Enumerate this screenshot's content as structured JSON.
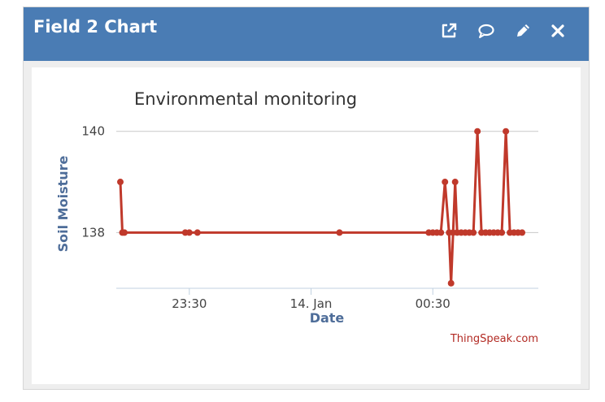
{
  "widget": {
    "title": "Field 2 Chart",
    "header_color": "#4a7cb4",
    "actions": [
      {
        "name": "open-external-icon"
      },
      {
        "name": "comment-icon"
      },
      {
        "name": "edit-pencil-icon"
      },
      {
        "name": "close-icon"
      }
    ]
  },
  "credit": "ThingSpeak.com",
  "chart_data": {
    "type": "line",
    "title": "Environmental monitoring",
    "xlabel": "Date",
    "ylabel": "Soil Moisture",
    "series_color": "#c0392b",
    "grid": true,
    "legend": "none",
    "x_ticks": [
      {
        "label": "23:30",
        "at": "23:30"
      },
      {
        "label": "14. Jan",
        "at": "00:00"
      },
      {
        "label": "00:30",
        "at": "00:30"
      }
    ],
    "y_ticks": [
      138,
      140
    ],
    "ylim": [
      136.9,
      140.3
    ],
    "xlim": [
      "23:12",
      "00:56"
    ],
    "series": [
      {
        "points": [
          [
            "23:13",
            139
          ],
          [
            "23:13.5",
            138
          ],
          [
            "23:14",
            138
          ],
          [
            "23:29",
            138
          ],
          [
            "23:30",
            138
          ],
          [
            "23:32",
            138
          ],
          [
            "00:07",
            138
          ],
          [
            "00:29",
            138
          ],
          [
            "00:30",
            138
          ],
          [
            "00:31",
            138
          ],
          [
            "00:32",
            138
          ],
          [
            "00:33",
            139
          ],
          [
            "00:34",
            138
          ],
          [
            "00:34.5",
            137
          ],
          [
            "00:35",
            138
          ],
          [
            "00:35.5",
            139
          ],
          [
            "00:36",
            138
          ],
          [
            "00:37",
            138
          ],
          [
            "00:38",
            138
          ],
          [
            "00:39",
            138
          ],
          [
            "00:40",
            138
          ],
          [
            "00:41",
            140
          ],
          [
            "00:42",
            138
          ],
          [
            "00:43",
            138
          ],
          [
            "00:44",
            138
          ],
          [
            "00:45",
            138
          ],
          [
            "00:46",
            138
          ],
          [
            "00:47",
            138
          ],
          [
            "00:48",
            140
          ],
          [
            "00:49",
            138
          ],
          [
            "00:50",
            138
          ],
          [
            "00:51",
            138
          ],
          [
            "00:52",
            138
          ]
        ]
      }
    ]
  }
}
